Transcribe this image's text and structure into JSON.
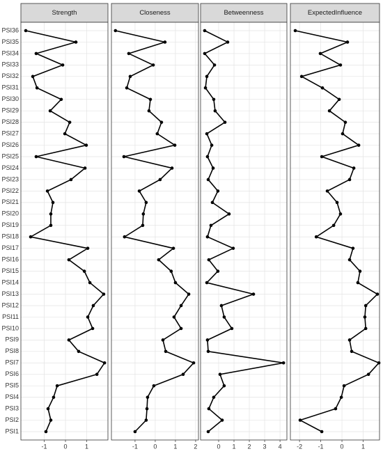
{
  "chart_data": {
    "type": "line",
    "orientation": "horizontal",
    "grid": true,
    "color": "#000000",
    "categories": [
      "PSI1",
      "PSI2",
      "PSI3",
      "PSI4",
      "PSI5",
      "PSI6",
      "PSI7",
      "PSI8",
      "PSI9",
      "PSI10",
      "PSI11",
      "PSI12",
      "PSI13",
      "PSI14",
      "PSI15",
      "PSI16",
      "PSI17",
      "PSI18",
      "PSI19",
      "PSI20",
      "PSI21",
      "PSI22",
      "PSI23",
      "PSI24",
      "PSI25",
      "PSI26",
      "PSI27",
      "PSI28",
      "PSI29",
      "PSI30",
      "PSI31",
      "PSI32",
      "PSI33",
      "PSI34",
      "PSI35",
      "PSI36"
    ],
    "facets": [
      {
        "title": "Strength",
        "xlim": [
          -2.1,
          2.0
        ],
        "xticks": [
          -1,
          0,
          1
        ],
        "values": [
          -0.92,
          -0.69,
          -0.82,
          -0.56,
          -0.39,
          1.48,
          1.84,
          0.62,
          0.16,
          1.28,
          1.05,
          1.31,
          1.8,
          1.15,
          0.89,
          0.16,
          1.05,
          -1.64,
          -0.69,
          -0.69,
          -0.59,
          -0.85,
          0.26,
          0.92,
          -1.38,
          0.98,
          -0.03,
          0.2,
          -0.72,
          -0.2,
          -1.34,
          -1.54,
          -0.13,
          -1.38,
          0.49,
          -1.87
        ]
      },
      {
        "title": "Closeness",
        "xlim": [
          -2.17,
          2.14
        ],
        "xticks": [
          -1,
          0,
          1,
          2
        ],
        "values": [
          -1.0,
          -0.45,
          -0.41,
          -0.38,
          -0.07,
          1.38,
          1.9,
          0.52,
          0.38,
          1.28,
          0.93,
          1.28,
          1.66,
          1.0,
          0.79,
          0.17,
          0.9,
          -1.52,
          -0.62,
          -0.59,
          -0.45,
          -0.79,
          0.24,
          0.83,
          -1.55,
          0.97,
          0.1,
          0.31,
          -0.31,
          -0.24,
          -1.41,
          -1.24,
          -0.1,
          -1.31,
          0.48,
          -1.97
        ]
      },
      {
        "title": "Betweenness",
        "xlim": [
          -1.18,
          4.45
        ],
        "xticks": [
          0,
          1,
          2,
          3,
          4
        ],
        "values": [
          -0.68,
          0.23,
          -0.64,
          -0.32,
          0.36,
          0.09,
          4.23,
          -0.68,
          -0.73,
          0.86,
          0.36,
          0.18,
          2.27,
          -0.77,
          -0.05,
          -0.64,
          0.95,
          -0.73,
          -0.5,
          0.68,
          -0.41,
          -0.05,
          -0.68,
          -0.36,
          -0.73,
          -0.45,
          -0.77,
          0.41,
          -0.23,
          -0.32,
          -0.86,
          -0.77,
          -0.27,
          -0.91,
          0.59,
          -0.91
        ]
      },
      {
        "title": "ExpectedInfluence",
        "xlim": [
          -2.43,
          1.77
        ],
        "xticks": [
          -2,
          -1,
          0,
          1
        ],
        "values": [
          -0.95,
          -1.97,
          -0.3,
          -0.03,
          0.1,
          1.25,
          1.74,
          0.46,
          0.36,
          1.12,
          1.08,
          1.12,
          1.67,
          0.75,
          0.85,
          0.36,
          0.52,
          -1.21,
          -0.39,
          -0.07,
          -0.23,
          -0.69,
          0.36,
          0.56,
          -0.95,
          0.79,
          0.03,
          0.16,
          -0.59,
          -0.13,
          -0.92,
          -1.9,
          -0.07,
          -1.02,
          0.26,
          -2.2
        ]
      }
    ]
  }
}
